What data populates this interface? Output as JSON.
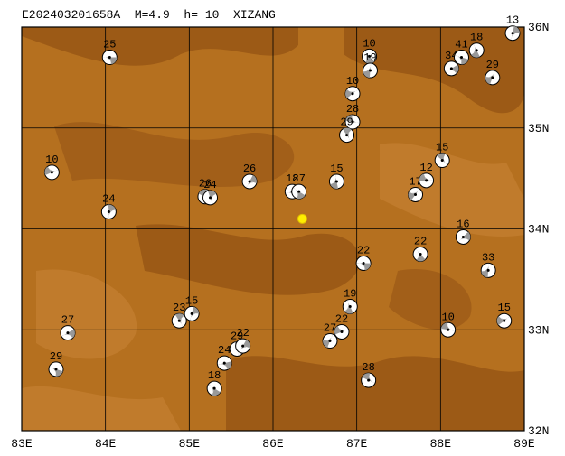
{
  "title": "E202403201658A  M=4.9  h= 10  XIZANG",
  "xlim": [
    83,
    89
  ],
  "ylim": [
    32,
    36
  ],
  "xticks": [
    {
      "value": 83,
      "label": "83E"
    },
    {
      "value": 84,
      "label": "84E"
    },
    {
      "value": 85,
      "label": "85E"
    },
    {
      "value": 86,
      "label": "86E"
    },
    {
      "value": 87,
      "label": "87E"
    },
    {
      "value": 88,
      "label": "88E"
    },
    {
      "value": 89,
      "label": "89E"
    }
  ],
  "yticks": [
    {
      "value": 32,
      "label": "32N"
    },
    {
      "value": 33,
      "label": "33N"
    },
    {
      "value": 34,
      "label": "34N"
    },
    {
      "value": 35,
      "label": "35N"
    },
    {
      "value": 36,
      "label": "36N"
    }
  ],
  "epicenter": {
    "lon": 86.35,
    "lat": 34.1
  },
  "events": [
    {
      "lon": 84.05,
      "lat": 35.7,
      "depth": 25
    },
    {
      "lon": 87.15,
      "lat": 35.71,
      "depth": 10
    },
    {
      "lon": 87.16,
      "lat": 35.57,
      "depth": 19
    },
    {
      "lon": 86.95,
      "lat": 35.34,
      "depth": 10
    },
    {
      "lon": 86.95,
      "lat": 35.06,
      "depth": 28
    },
    {
      "lon": 86.88,
      "lat": 34.93,
      "depth": 29
    },
    {
      "lon": 88.86,
      "lat": 35.94,
      "depth": 13
    },
    {
      "lon": 88.13,
      "lat": 35.59,
      "depth": 34
    },
    {
      "lon": 88.25,
      "lat": 35.7,
      "depth": 41
    },
    {
      "lon": 88.43,
      "lat": 35.77,
      "depth": 18
    },
    {
      "lon": 88.62,
      "lat": 35.5,
      "depth": 29
    },
    {
      "lon": 83.36,
      "lat": 34.56,
      "depth": 10
    },
    {
      "lon": 85.19,
      "lat": 34.32,
      "depth": 26
    },
    {
      "lon": 85.25,
      "lat": 34.31,
      "depth": 24
    },
    {
      "lon": 85.72,
      "lat": 34.47,
      "depth": 26
    },
    {
      "lon": 86.23,
      "lat": 34.37,
      "depth": 18
    },
    {
      "lon": 86.31,
      "lat": 34.37,
      "depth": 27
    },
    {
      "lon": 86.76,
      "lat": 34.47,
      "depth": 15
    },
    {
      "lon": 87.7,
      "lat": 34.34,
      "depth": 17
    },
    {
      "lon": 87.83,
      "lat": 34.48,
      "depth": 12
    },
    {
      "lon": 88.02,
      "lat": 34.68,
      "depth": 15
    },
    {
      "lon": 84.04,
      "lat": 34.17,
      "depth": 24
    },
    {
      "lon": 88.27,
      "lat": 33.92,
      "depth": 16
    },
    {
      "lon": 87.08,
      "lat": 33.66,
      "depth": 22
    },
    {
      "lon": 87.76,
      "lat": 33.75,
      "depth": 22
    },
    {
      "lon": 88.57,
      "lat": 33.59,
      "depth": 33
    },
    {
      "lon": 88.76,
      "lat": 33.09,
      "depth": 15
    },
    {
      "lon": 88.09,
      "lat": 33.0,
      "depth": 10
    },
    {
      "lon": 84.88,
      "lat": 33.09,
      "depth": 23
    },
    {
      "lon": 85.03,
      "lat": 33.16,
      "depth": 15
    },
    {
      "lon": 83.55,
      "lat": 32.97,
      "depth": 27
    },
    {
      "lon": 83.41,
      "lat": 32.61,
      "depth": 29
    },
    {
      "lon": 86.92,
      "lat": 33.23,
      "depth": 19
    },
    {
      "lon": 86.68,
      "lat": 32.89,
      "depth": 27
    },
    {
      "lon": 86.82,
      "lat": 32.98,
      "depth": 22
    },
    {
      "lon": 87.14,
      "lat": 32.5,
      "depth": 28
    },
    {
      "lon": 85.57,
      "lat": 32.81,
      "depth": 29
    },
    {
      "lon": 85.64,
      "lat": 32.84,
      "depth": 22
    },
    {
      "lon": 85.42,
      "lat": 32.67,
      "depth": 24
    },
    {
      "lon": 85.3,
      "lat": 32.42,
      "depth": 18
    }
  ]
}
